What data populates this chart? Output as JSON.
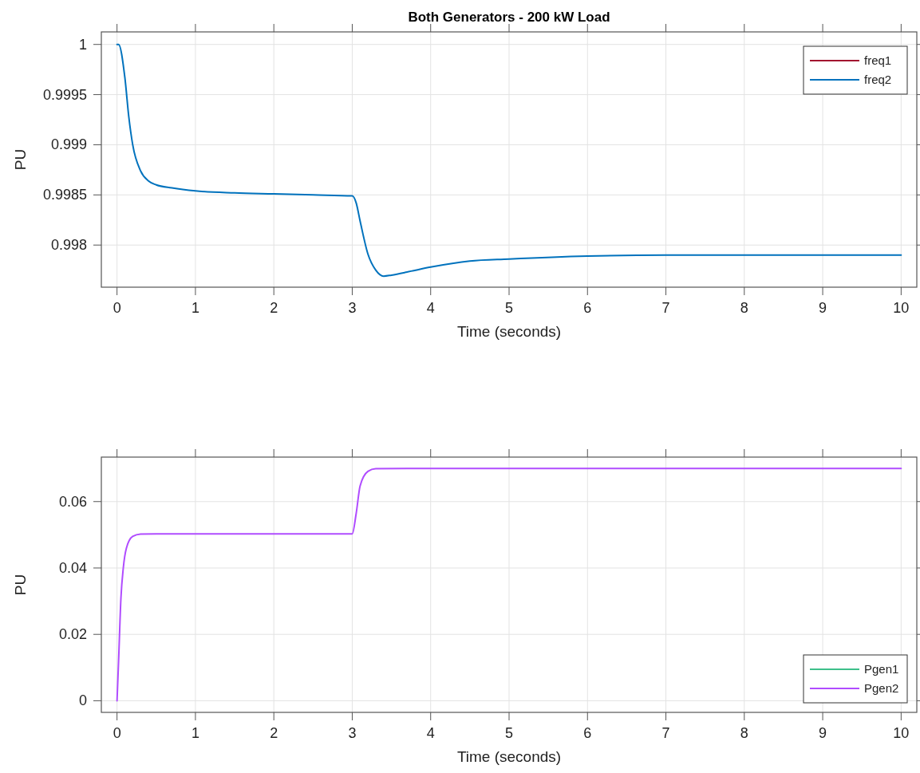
{
  "chart_data": [
    {
      "type": "line",
      "title": "Both Generators - 200 kW Load",
      "xlabel": "Time (seconds)",
      "ylabel": "PU",
      "xlim": [
        -0.2,
        10.2
      ],
      "xticks": [
        0,
        1,
        2,
        3,
        4,
        5,
        6,
        7,
        8,
        9,
        10
      ],
      "ylim": [
        0.99758,
        1.000125
      ],
      "yticks": [
        0.998,
        0.9985,
        0.999,
        0.9995,
        1
      ],
      "grid": true,
      "legend": "top right",
      "line_style": "solid",
      "marker": "none",
      "x": [
        0,
        0.02,
        0.1,
        0.15,
        0.2,
        0.3,
        0.4,
        0.5,
        0.7,
        1,
        1.5,
        2,
        2.5,
        3,
        3.05,
        3.1,
        3.2,
        3.3,
        3.4,
        3.5,
        3.75,
        4,
        4.5,
        5,
        6,
        7,
        8,
        10
      ],
      "series": [
        {
          "name": "freq1",
          "color": "#a2142f",
          "values": [
            null,
            null,
            null,
            null,
            null,
            null,
            null,
            null,
            null,
            null,
            null,
            null,
            null,
            null,
            null,
            null,
            null,
            null,
            null,
            null,
            null,
            null,
            null,
            null,
            null,
            null,
            null,
            null
          ]
        },
        {
          "name": "freq2",
          "color": "#0072bd",
          "values": [
            1,
            1,
            0.99967,
            0.99928,
            0.999,
            0.99874,
            0.99864,
            0.9986,
            0.99857,
            0.99854,
            0.99852,
            0.99851,
            0.9985,
            0.99849,
            0.99842,
            0.99824,
            0.99791,
            0.99775,
            0.99769,
            0.9977,
            0.99774,
            0.99778,
            0.99784,
            0.99786,
            0.99789,
            0.9979,
            0.9979,
            0.9979
          ]
        }
      ]
    },
    {
      "type": "line",
      "xlabel": "Time (seconds)",
      "ylabel": "PU",
      "xlim": [
        -0.2,
        10.2
      ],
      "xticks": [
        0,
        1,
        2,
        3,
        4,
        5,
        6,
        7,
        8,
        9,
        10
      ],
      "ylim": [
        -0.0035,
        0.0734
      ],
      "yticks": [
        0,
        0.02,
        0.04,
        0.06
      ],
      "grid": true,
      "legend": "bottom right",
      "line_style": "solid",
      "marker": "none",
      "x": [
        0,
        0.02,
        0.05,
        0.08,
        0.12,
        0.2,
        0.3,
        0.5,
        1,
        2,
        3,
        3.05,
        3.1,
        3.2,
        3.3,
        4,
        6,
        8,
        10
      ],
      "series": [
        {
          "name": "Pgen1",
          "color": "#3dbf8a",
          "values": [
            null,
            null,
            null,
            null,
            null,
            null,
            null,
            null,
            null,
            null,
            null,
            null,
            null,
            null,
            null,
            null,
            null,
            null,
            null
          ]
        },
        {
          "name": "Pgen2",
          "color": "#b04cff",
          "values": [
            0,
            0.012,
            0.031,
            0.04,
            0.046,
            0.0495,
            0.0502,
            0.0503,
            0.0503,
            0.0503,
            0.0503,
            0.0564,
            0.0647,
            0.0691,
            0.0699,
            0.07,
            0.07,
            0.07,
            0.07
          ]
        }
      ]
    }
  ]
}
